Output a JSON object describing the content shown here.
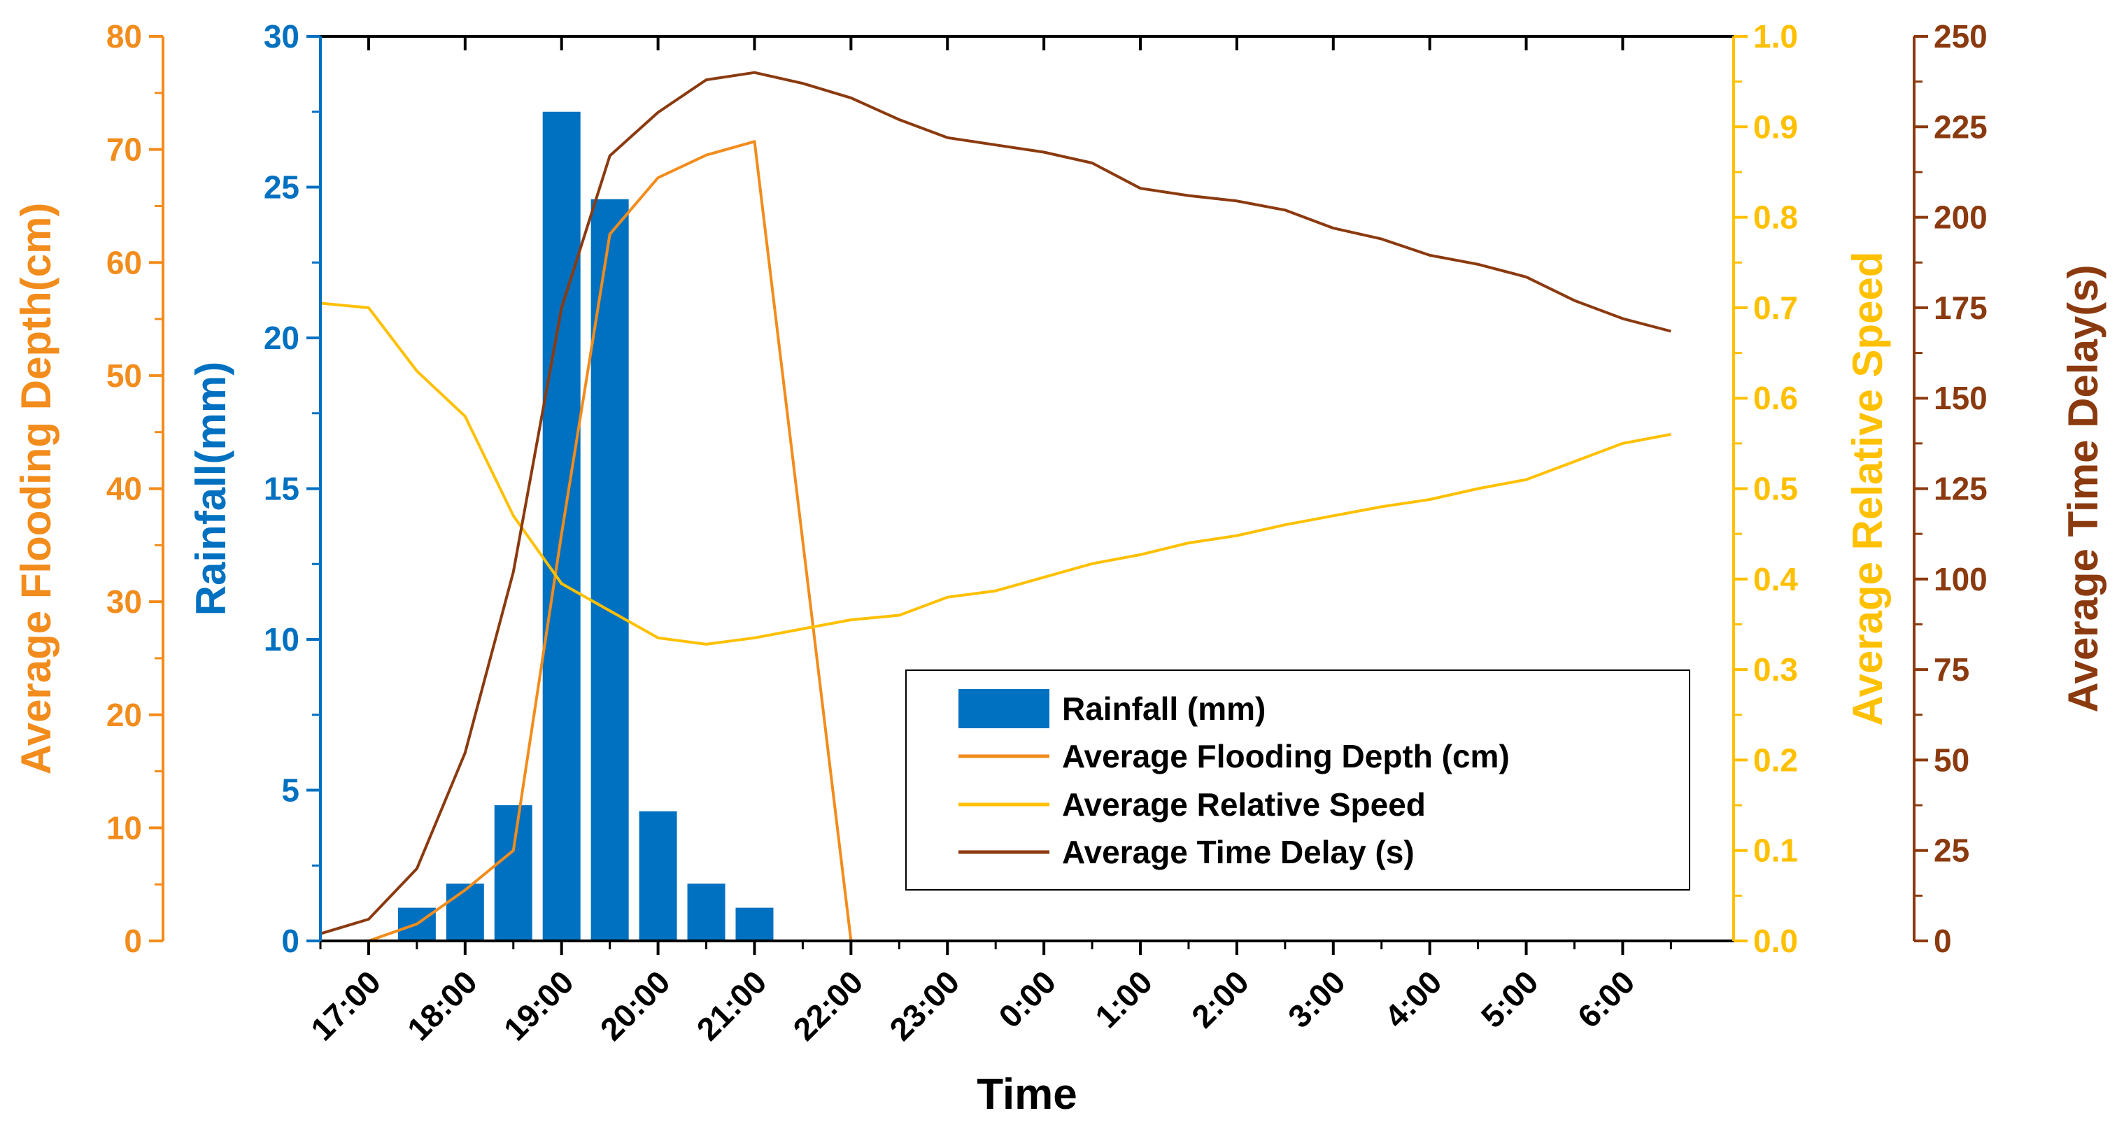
{
  "chart_data": {
    "type": "bar+line",
    "xlabel": "Time",
    "x_ticks": [
      "17:00",
      "18:00",
      "19:00",
      "20:00",
      "21:00",
      "22:00",
      "23:00",
      "0:00",
      "1:00",
      "2:00",
      "3:00",
      "4:00",
      "5:00",
      "6:00"
    ],
    "x_range": [
      16.5,
      31.15
    ],
    "axes": {
      "rainfall": {
        "label": "Rainfall(mm)",
        "range": [
          0,
          30
        ],
        "ticks": [
          "0",
          "5",
          "10",
          "15",
          "20",
          "25",
          "30"
        ],
        "color": "#0070C0"
      },
      "depth": {
        "label": "Average Flooding Depth(cm)",
        "range": [
          0,
          80
        ],
        "ticks": [
          "0",
          "10",
          "20",
          "30",
          "40",
          "50",
          "60",
          "70",
          "80"
        ],
        "color": "#F28C1C"
      },
      "speed": {
        "label": "Average Relative Speed",
        "range": [
          0,
          1.0
        ],
        "ticks": [
          "0.0",
          "0.1",
          "0.2",
          "0.3",
          "0.4",
          "0.5",
          "0.6",
          "0.7",
          "0.8",
          "0.9",
          "1.0"
        ],
        "color": "#FFC000"
      },
      "delay": {
        "label": "Average Time Delay(s)",
        "range": [
          0,
          250
        ],
        "ticks": [
          "0",
          "25",
          "50",
          "75",
          "100",
          "125",
          "150",
          "175",
          "200",
          "225",
          "250"
        ],
        "color": "#8B3A0F"
      }
    },
    "series": [
      {
        "name": "Rainfall (mm)",
        "type": "bar",
        "axis": "rainfall",
        "x": [
          17.5,
          18.0,
          18.5,
          19.0,
          19.5,
          20.0,
          20.5,
          21.0
        ],
        "values": [
          1.1,
          1.9,
          4.5,
          27.5,
          24.6,
          4.3,
          1.9,
          1.1
        ]
      },
      {
        "name": "Average Flooding Depth (cm)",
        "type": "line",
        "axis": "depth",
        "x": [
          17.0,
          17.5,
          18.0,
          18.5,
          19.0,
          19.5,
          20.0,
          20.5,
          21.0,
          22.0
        ],
        "values": [
          0,
          1.5,
          4.5,
          8,
          36,
          62.5,
          67.5,
          69.5,
          70.7,
          0
        ]
      },
      {
        "name": "Average Relative Speed",
        "type": "line",
        "axis": "speed",
        "x": [
          16.5,
          17.0,
          17.5,
          18.0,
          18.5,
          19.0,
          19.5,
          20.0,
          20.5,
          21.0,
          21.5,
          22.0,
          22.5,
          23.0,
          23.5,
          24.0,
          24.5,
          25.0,
          25.5,
          26.0,
          26.5,
          27.0,
          27.5,
          28.0,
          28.5,
          29.0,
          29.5,
          30.0,
          30.5
        ],
        "values": [
          0.705,
          0.7,
          0.63,
          0.58,
          0.47,
          0.395,
          0.365,
          0.335,
          0.328,
          0.335,
          0.345,
          0.355,
          0.36,
          0.38,
          0.387,
          0.402,
          0.417,
          0.427,
          0.44,
          0.448,
          0.46,
          0.47,
          0.48,
          0.488,
          0.5,
          0.51,
          0.53,
          0.55,
          0.56
        ]
      },
      {
        "name": "Average Time Delay (s)",
        "type": "line",
        "axis": "delay",
        "x": [
          16.5,
          17.0,
          17.5,
          18.0,
          18.5,
          19.0,
          19.5,
          20.0,
          20.5,
          21.0,
          21.5,
          22.0,
          22.5,
          23.0,
          23.5,
          24.0,
          24.5,
          25.0,
          25.5,
          26.0,
          26.5,
          27.0,
          27.5,
          28.0,
          28.5,
          29.0,
          29.5,
          30.0,
          30.5
        ],
        "values": [
          2,
          6,
          20,
          52,
          102,
          175,
          217,
          229,
          238,
          240,
          237,
          233,
          227,
          222,
          220,
          218,
          215,
          208,
          206,
          204.5,
          202,
          197,
          194,
          189.5,
          187,
          183.5,
          177,
          172,
          168.5
        ]
      }
    ],
    "legend": {
      "position": "lower-right inside plot",
      "entries": [
        "Rainfall (mm)",
        "Average Flooding Depth (cm)",
        "Average Relative Speed",
        "Average Time Delay (s)"
      ]
    }
  }
}
